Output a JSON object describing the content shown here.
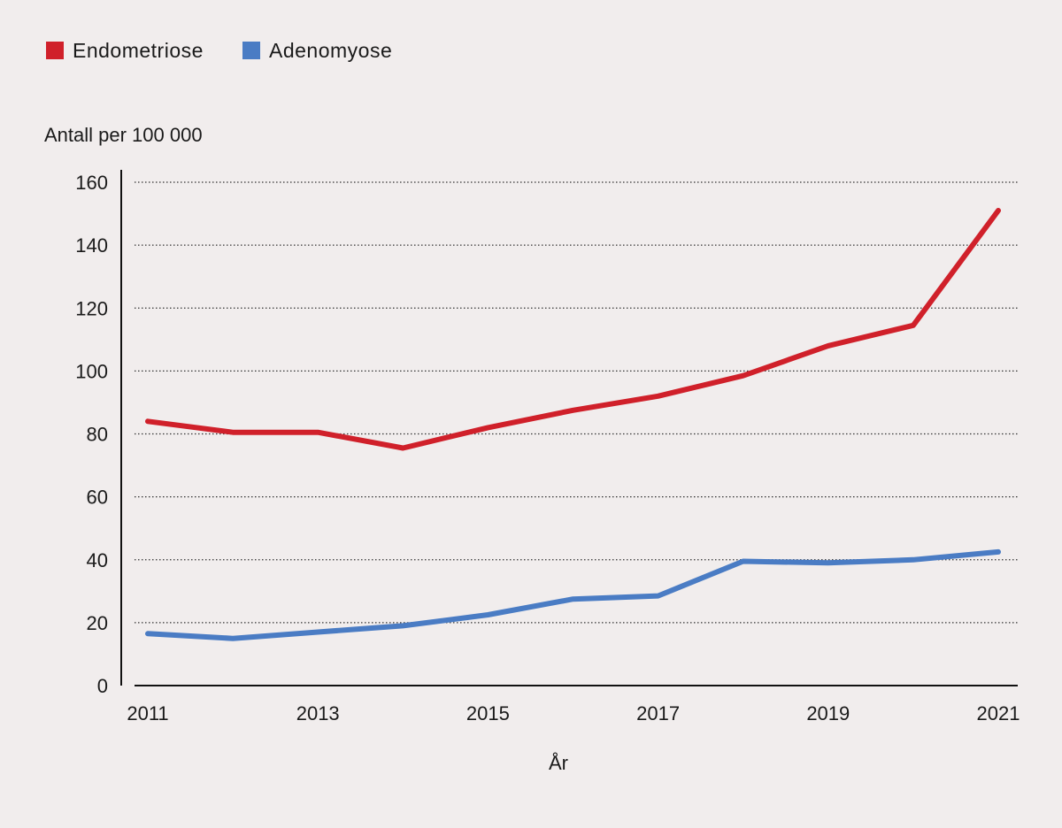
{
  "chart_data": {
    "type": "line",
    "title": "",
    "ylabel": "Antall per 100 000",
    "xlabel": "År",
    "ylim": [
      0,
      160
    ],
    "yticks": [
      0,
      20,
      40,
      60,
      80,
      100,
      120,
      140,
      160
    ],
    "xlim": [
      2011,
      2021
    ],
    "xticks": [
      2011,
      2013,
      2015,
      2017,
      2019,
      2021
    ],
    "x": [
      2011,
      2012,
      2013,
      2014,
      2015,
      2016,
      2017,
      2018,
      2019,
      2020,
      2021
    ],
    "grid": "horizontal dotted",
    "legend_position": "top-left",
    "series": [
      {
        "name": "Endometriose",
        "color": "#d0202a",
        "values": [
          84,
          80.5,
          80.5,
          75.5,
          82,
          87.5,
          92,
          98.5,
          108,
          114.5,
          151
        ]
      },
      {
        "name": "Adenomyose",
        "color": "#4a7cc4",
        "values": [
          16.5,
          15,
          17,
          19,
          22.5,
          27.5,
          28.5,
          39.5,
          39,
          40,
          42.5
        ]
      }
    ]
  }
}
